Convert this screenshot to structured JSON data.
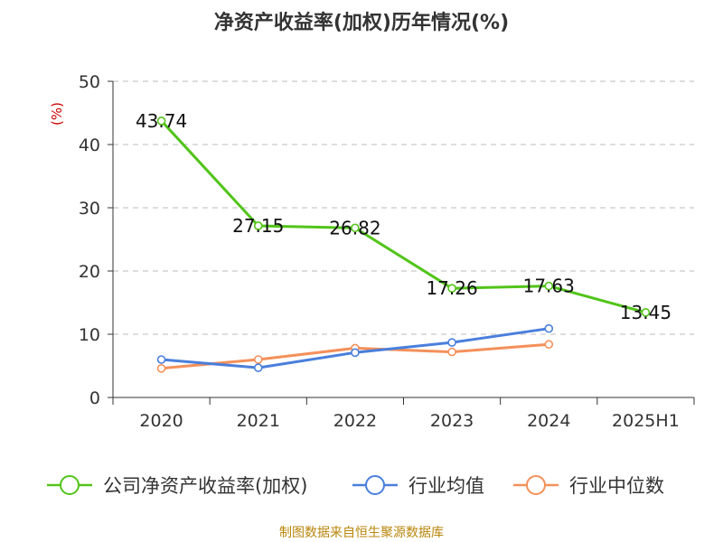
{
  "chart_data": {
    "type": "line",
    "title": "净资产收益率(加权)历年情况(%)",
    "ylabel": "(%)",
    "xlabel": "",
    "categories": [
      "2020",
      "2021",
      "2022",
      "2023",
      "2024",
      "2025H1"
    ],
    "ylim": [
      0,
      50
    ],
    "yticks": [
      0,
      10,
      20,
      30,
      40,
      50
    ],
    "grid": true,
    "legend_position": "bottom",
    "series": [
      {
        "name": "公司净资产收益率(加权)",
        "color": "#52c41a",
        "values": [
          43.74,
          27.15,
          26.82,
          17.26,
          17.63,
          13.45
        ],
        "labels": [
          "43.74",
          "27.15",
          "26.82",
          "17.26",
          "17.63",
          "13.45"
        ]
      },
      {
        "name": "行业均值",
        "color": "#4a7fdc",
        "values": [
          6.0,
          4.7,
          7.1,
          8.7,
          10.9,
          null
        ]
      },
      {
        "name": "行业中位数",
        "color": "#f4905a",
        "values": [
          4.6,
          6.0,
          7.8,
          7.2,
          8.4,
          null
        ]
      }
    ],
    "source": "制图数据来自恒生聚源数据库"
  }
}
